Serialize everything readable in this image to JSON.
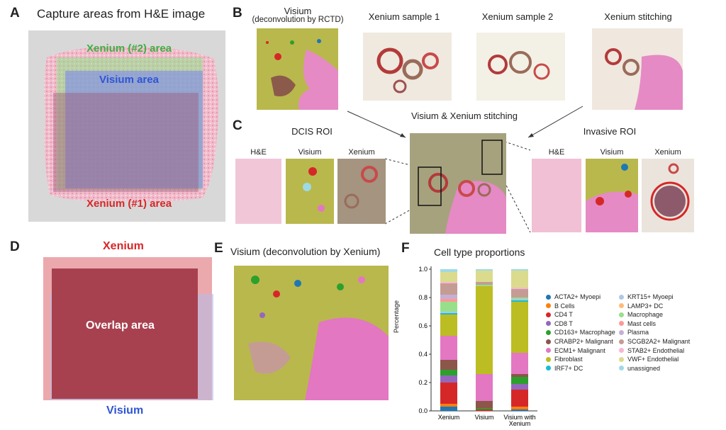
{
  "panelA": {
    "letter": "A",
    "title": "Capture areas from H&E image",
    "xenium2": "Xenium (#2) area",
    "visium": "Visium area",
    "xenium1": "Xenium (#1) area"
  },
  "panelB": {
    "letter": "B",
    "visium_title_1": "Visium",
    "visium_title_2": "(deconvolution by RCTD)",
    "xenium1": "Xenium sample 1",
    "xenium2": "Xenium sample 2",
    "stitch": "Xenium stitching"
  },
  "panelC": {
    "letter": "C",
    "center_title": "Visium & Xenium stitching",
    "dcis": "DCIS ROI",
    "invasive": "Invasive ROI",
    "he": "H&E",
    "visium": "Visium",
    "xenium": "Xenium"
  },
  "panelD": {
    "letter": "D",
    "xenium": "Xenium",
    "overlap": "Overlap area",
    "visium": "Visium"
  },
  "panelE": {
    "letter": "E",
    "title": "Visium (deconvolution by Xenium)"
  },
  "panelF": {
    "letter": "F",
    "colors": {
      "ACTA2+ Myoepi": "#1f77b4",
      "B Cells": "#ff7f0e",
      "CD4 T": "#d62728",
      "CD8 T": "#9467bd",
      "CD163+ Macrophage": "#2ca02c",
      "CRABP2+ Malignant": "#8c564b",
      "ECM1+ Malignant": "#e377c2",
      "Fibroblast": "#bcbd22",
      "IRF7+ DC": "#17becf",
      "KRT15+ Myoepi": "#aec7e8",
      "LAMP3+ DC": "#ffbb78",
      "Macrophage": "#98df8a",
      "Mast cells": "#ff9896",
      "Plasma": "#c5b0d5",
      "SCGB2A2+ Malignant": "#c49c94",
      "STAB2+ Endothelial": "#f7b6d2",
      "VWF+ Endothelial": "#dbdb8d",
      "unassigned": "#9edae5"
    }
  },
  "chart_data": {
    "type": "bar",
    "stacked": true,
    "title": "Cell type proportions",
    "ylabel": "Percentage",
    "ylim": [
      0,
      1.0
    ],
    "yticks": [
      "0.0",
      "0.2",
      "0.4",
      "0.6",
      "0.8",
      "1.0"
    ],
    "categories": [
      "Xenium",
      "Visium",
      "Visium with Xenium"
    ],
    "legend_left": [
      "ACTA2+ Myoepi",
      "B Cells",
      "CD4 T",
      "CD8 T",
      "CD163+ Macrophage",
      "CRABP2+ Malignant",
      "ECM1+ Malignant",
      "Fibroblast",
      "IRF7+ DC"
    ],
    "legend_right": [
      "KRT15+ Myoepi",
      "LAMP3+ DC",
      "Macrophage",
      "Mast cells",
      "Plasma",
      "SCGB2A2+ Malignant",
      "STAB2+ Endothelial",
      "VWF+ Endothelial",
      "unassigned"
    ],
    "series": [
      {
        "name": "ACTA2+ Myoepi",
        "values": [
          0.03,
          0.0,
          0.01
        ]
      },
      {
        "name": "B Cells",
        "values": [
          0.02,
          0.0,
          0.02
        ]
      },
      {
        "name": "CD4 T",
        "values": [
          0.15,
          0.01,
          0.12
        ]
      },
      {
        "name": "CD8 T",
        "values": [
          0.05,
          0.0,
          0.04
        ]
      },
      {
        "name": "CD163+ Macrophage",
        "values": [
          0.04,
          0.01,
          0.05
        ]
      },
      {
        "name": "CRABP2+ Malignant",
        "values": [
          0.07,
          0.05,
          0.02
        ]
      },
      {
        "name": "ECM1+ Malignant",
        "values": [
          0.17,
          0.19,
          0.15
        ]
      },
      {
        "name": "Fibroblast",
        "values": [
          0.15,
          0.62,
          0.36
        ]
      },
      {
        "name": "IRF7+ DC",
        "values": [
          0.01,
          0.0,
          0.01
        ]
      },
      {
        "name": "KRT15+ Myoepi",
        "values": [
          0.01,
          0.0,
          0.01
        ]
      },
      {
        "name": "LAMP3+ DC",
        "values": [
          0.0,
          0.0,
          0.0
        ]
      },
      {
        "name": "Macrophage",
        "values": [
          0.07,
          0.01,
          0.01
        ]
      },
      {
        "name": "Mast cells",
        "values": [
          0.02,
          0.0,
          0.0
        ]
      },
      {
        "name": "Plasma",
        "values": [
          0.03,
          0.0,
          0.0
        ]
      },
      {
        "name": "SCGB2A2+ Malignant",
        "values": [
          0.08,
          0.02,
          0.06
        ]
      },
      {
        "name": "STAB2+ Endothelial",
        "values": [
          0.01,
          0.0,
          0.01
        ]
      },
      {
        "name": "VWF+ Endothelial",
        "values": [
          0.07,
          0.08,
          0.12
        ]
      },
      {
        "name": "unassigned",
        "values": [
          0.02,
          0.01,
          0.01
        ]
      }
    ]
  }
}
